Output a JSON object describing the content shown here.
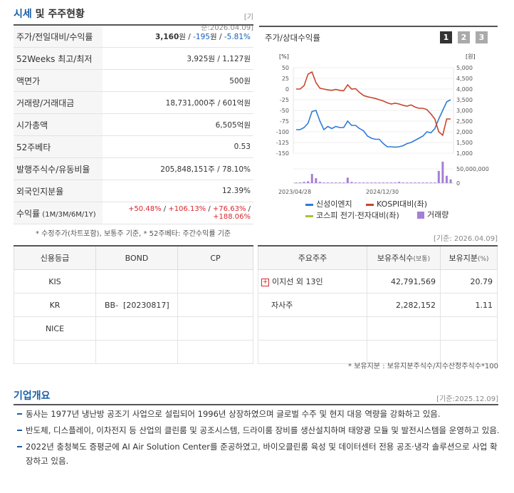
{
  "market": {
    "title_a": "시세",
    "title_b": " 및 주주현황",
    "stdate": "[기준:2026.04.09]",
    "rows": [
      {
        "k": "주가/전일대비/수익률"
      },
      {
        "k": "52Weeks 최고/최저"
      },
      {
        "k": "액면가"
      },
      {
        "k": "거래량/거래대금"
      },
      {
        "k": "시가총액"
      },
      {
        "k": "52주베타"
      },
      {
        "k": "발행주식수/유동비율"
      },
      {
        "k": "외국인지분율"
      },
      {
        "k": "수익률",
        "k_sub": " (1M/3M/6M/1Y)"
      }
    ],
    "price": "3,160",
    "price_unit": "원 / ",
    "change": "-195",
    "change_unit": "원 / ",
    "change_pct": "-5.81%",
    "high52": "3,925원 / 1,127원",
    "par": "500원",
    "volume": "18,731,000주 / 601억원",
    "marketcap": "6,505억원",
    "beta": "0.53",
    "shares": "205,848,151주 / 78.10%",
    "foreign": "12.39%",
    "returns": [
      "+50.48%",
      "+106.13%",
      "+76.63%",
      "+188.06%"
    ],
    "sep": " / ",
    "note": "* 수정주가(차트포함), 보통주 기준, * 52주베타: 주간수익률 기준"
  },
  "chart": {
    "title": "주가/상대수익률",
    "periods": [
      "1",
      "2",
      "3"
    ],
    "y_left_unit": "[%]",
    "y_right_unit": "[원]",
    "y_left_ticks": [
      50,
      25,
      0,
      -25,
      -50,
      -75,
      -100,
      -125,
      -150
    ],
    "y_right_ticks": [
      "5,000",
      "4,500",
      "4,000",
      "3,500",
      "3,000",
      "2,500",
      "2,000",
      "1,500",
      "1,000"
    ],
    "vol_tick": "50,000,000",
    "vol_zero": "0",
    "x_labels": [
      "2023/04/28",
      "2024/12/30"
    ],
    "colors": {
      "stock": "#2e7bd6",
      "kospi": "#c9452b",
      "sector": "#a6c33a",
      "volume": "#a47fd6"
    },
    "legend": [
      "신성이엔지",
      "KOSPI대비(좌)",
      "코스피 전기·전자대비(좌)",
      "거래량"
    ],
    "chart_data": {
      "type": "line",
      "note": "stock price in 원 (right axis), KOSPI relative return in % (left axis)",
      "x_index": [
        0,
        1,
        2,
        3,
        4,
        5,
        6,
        7,
        8,
        9,
        10,
        11,
        12,
        13,
        14,
        15,
        16,
        17,
        18,
        19,
        20,
        21,
        22,
        23,
        24,
        25,
        26,
        27,
        28,
        29,
        30,
        31,
        32,
        33,
        34,
        35,
        36,
        37,
        38,
        39
      ],
      "series": [
        {
          "name": "신성이엔지",
          "axis": "right",
          "values": [
            2100,
            2100,
            2200,
            2400,
            2950,
            3000,
            2500,
            2100,
            2250,
            2150,
            2250,
            2200,
            2200,
            2500,
            2300,
            2300,
            2150,
            2050,
            1800,
            1700,
            1650,
            1650,
            1450,
            1300,
            1300,
            1280,
            1300,
            1350,
            1450,
            1500,
            1600,
            1700,
            1800,
            2000,
            1950,
            2150,
            2600,
            3000,
            3400,
            3500
          ]
        },
        {
          "name": "KOSPI대비(좌)",
          "axis": "left",
          "values": [
            0,
            0,
            8,
            35,
            40,
            15,
            2,
            0,
            -2,
            -3,
            -1,
            -3,
            -4,
            10,
            0,
            1,
            -8,
            -15,
            -18,
            -20,
            -22,
            -25,
            -28,
            -32,
            -35,
            -33,
            -35,
            -38,
            -40,
            -37,
            -42,
            -45,
            -45,
            -48,
            -58,
            -70,
            -100,
            -108,
            -70,
            -70
          ]
        }
      ],
      "volume": [
        1,
        1,
        2,
        3,
        15,
        8,
        2,
        1,
        1,
        1,
        1,
        1,
        1,
        9,
        2,
        1,
        1,
        1,
        1,
        1,
        1,
        1,
        1,
        1,
        1,
        1,
        2,
        1,
        1,
        1,
        1,
        1,
        1,
        1,
        1,
        1,
        20,
        35,
        12,
        6
      ]
    }
  },
  "stdate2": "[기준: 2026.04.09]",
  "credit": {
    "headers": [
      "신용등급",
      "BOND",
      "CP"
    ],
    "rows": [
      [
        "KIS",
        "",
        ""
      ],
      [
        "KR",
        "BB-  [20230817]",
        ""
      ],
      [
        "NICE",
        "",
        ""
      ],
      [
        "",
        "",
        ""
      ]
    ]
  },
  "holders": {
    "headers": [
      "주요주주",
      "보유주식수",
      "(보통)",
      "보유지분",
      "(%)"
    ],
    "rows": [
      {
        "name": "이지선 외 13인",
        "shares": "42,791,569",
        "pct": "20.79",
        "expand": true
      },
      {
        "name": "자사주",
        "shares": "2,282,152",
        "pct": "1.11",
        "expand": false
      }
    ],
    "note": "* 보유지분 : 보유지분주식수/지수산정주식수*100"
  },
  "overview": {
    "title": "기업개요",
    "stdate": "[기준:2025.12.09]",
    "items": [
      "동사는 1977년 냉난방 공조기 사업으로 설립되어 1996년 상장하였으며 글로벌 수주 및 현지 대응 역량을 강화하고 있음.",
      "반도체, 디스플레이, 이차전지 등 산업의 클린룸 및 공조시스템, 드라이룸 장비를 생산설치하며 태양광 모듈 및 발전시스템을 운영하고 있음.",
      "2022년 충청북도 증평군에 AI Air Solution Center를 준공하였고, 바이오클린룸 육성 및 데이터센터 전용 공조·냉각 솔루션으로 사업 확장하고 있음."
    ]
  }
}
